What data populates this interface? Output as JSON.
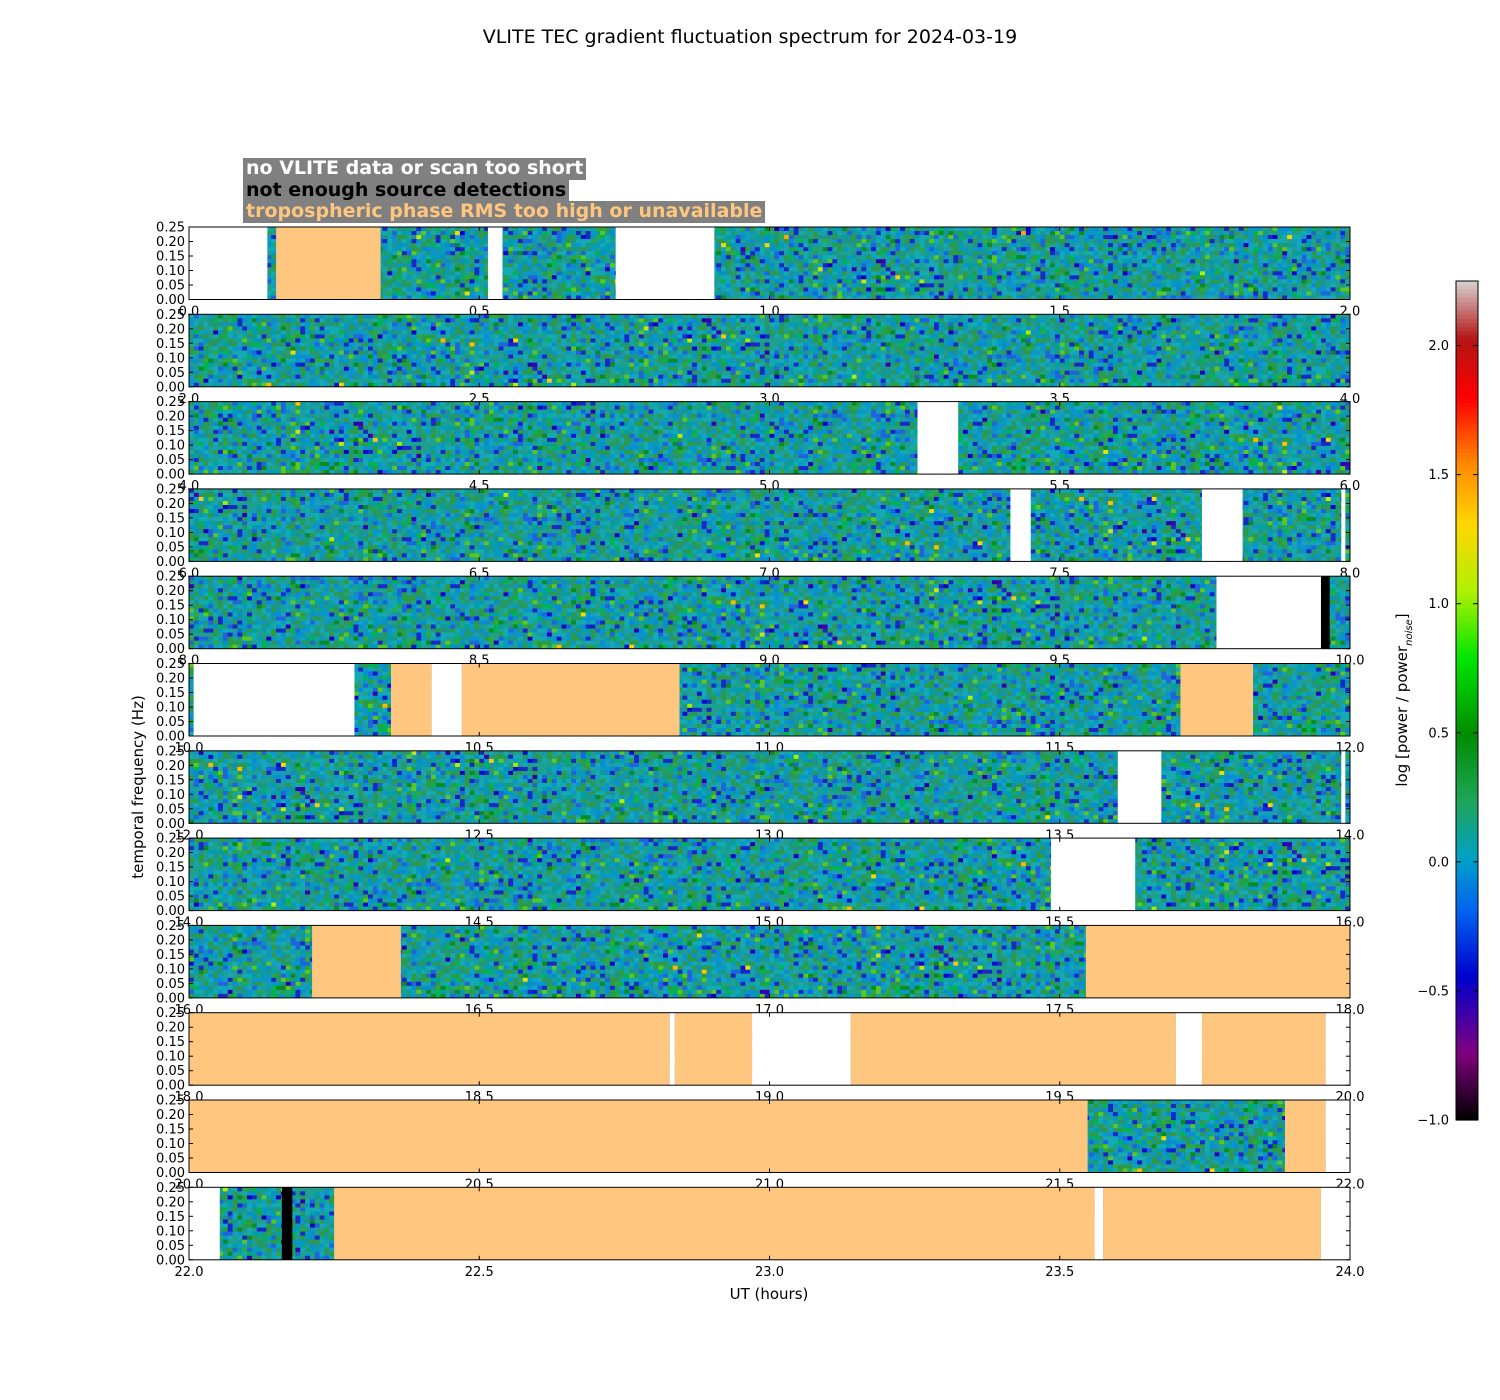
{
  "chart_data": {
    "type": "heatmap",
    "title": "VLITE TEC gradient fluctuation spectrum for 2024-03-19",
    "xlabel": "UT (hours)",
    "ylabel": "temporal frequency (Hz)",
    "ylim": [
      0.0,
      0.25
    ],
    "y_ticks": [
      "0.00",
      "0.05",
      "0.10",
      "0.15",
      "0.20",
      "0.25"
    ],
    "colorbar": {
      "label": "log [power / power",
      "label_sub": "noise",
      "label_end": "]",
      "vmin": -1.0,
      "vmax": 2.25,
      "ticks": [
        "−1.0",
        "−0.5",
        "0.0",
        "0.5",
        "1.0",
        "1.5",
        "2.0"
      ],
      "tick_values": [
        -1.0,
        -0.5,
        0.0,
        0.5,
        1.0,
        1.5,
        2.0
      ]
    },
    "legend": [
      {
        "label": "no VLITE data or scan too short",
        "color": "#ffffff"
      },
      {
        "label": "not enough source detections",
        "color": "#000000"
      },
      {
        "label": "tropospheric phase RMS too high or unavailable",
        "color": "#fec67e"
      }
    ],
    "status_colors": {
      "nodata": "#ffffff",
      "nodet": "#000000",
      "tropo": "#fec67e"
    },
    "panels": [
      {
        "xlim": [
          0.0,
          2.0
        ],
        "x_ticks": [
          "0.0",
          "0.5",
          "1.0",
          "1.5",
          "2.0"
        ],
        "segments": [
          {
            "start": 0.0,
            "end": 0.135,
            "status": "nodata"
          },
          {
            "start": 0.15,
            "end": 0.33,
            "status": "tropo"
          },
          {
            "start": 0.515,
            "end": 0.54,
            "status": "nodata"
          },
          {
            "start": 0.735,
            "end": 0.905,
            "status": "nodata"
          }
        ]
      },
      {
        "xlim": [
          2.0,
          4.0
        ],
        "x_ticks": [
          "2.0",
          "2.5",
          "3.0",
          "3.5",
          "4.0"
        ],
        "segments": []
      },
      {
        "xlim": [
          4.0,
          6.0
        ],
        "x_ticks": [
          "4.0",
          "4.5",
          "5.0",
          "5.5",
          "6.0"
        ],
        "segments": [
          {
            "start": 5.255,
            "end": 5.325,
            "status": "nodata"
          }
        ]
      },
      {
        "xlim": [
          6.0,
          8.0
        ],
        "x_ticks": [
          "6.0",
          "6.5",
          "7.0",
          "7.5",
          "8.0"
        ],
        "segments": [
          {
            "start": 7.415,
            "end": 7.45,
            "status": "nodata"
          },
          {
            "start": 7.745,
            "end": 7.815,
            "status": "nodata"
          },
          {
            "start": 7.985,
            "end": 7.992,
            "status": "nodata"
          }
        ]
      },
      {
        "xlim": [
          8.0,
          10.0
        ],
        "x_ticks": [
          "8.0",
          "8.5",
          "9.0",
          "9.5",
          "10.0"
        ],
        "segments": [
          {
            "start": 9.77,
            "end": 9.95,
            "status": "nodata"
          },
          {
            "start": 9.95,
            "end": 9.965,
            "status": "nodet"
          }
        ]
      },
      {
        "xlim": [
          10.0,
          12.0
        ],
        "x_ticks": [
          "10.0",
          "10.5",
          "11.0",
          "11.5",
          "12.0"
        ],
        "segments": [
          {
            "start": 10.008,
            "end": 10.285,
            "status": "nodata"
          },
          {
            "start": 10.348,
            "end": 10.418,
            "status": "tropo"
          },
          {
            "start": 10.418,
            "end": 10.47,
            "status": "nodata"
          },
          {
            "start": 10.47,
            "end": 10.845,
            "status": "tropo"
          },
          {
            "start": 11.708,
            "end": 11.833,
            "status": "tropo"
          }
        ]
      },
      {
        "xlim": [
          12.0,
          14.0
        ],
        "x_ticks": [
          "12.0",
          "12.5",
          "13.0",
          "13.5",
          "14.0"
        ],
        "segments": [
          {
            "start": 13.6,
            "end": 13.675,
            "status": "nodata"
          },
          {
            "start": 13.985,
            "end": 13.992,
            "status": "nodata"
          }
        ]
      },
      {
        "xlim": [
          14.0,
          16.0
        ],
        "x_ticks": [
          "14.0",
          "14.5",
          "15.0",
          "15.5",
          "16.0"
        ],
        "segments": [
          {
            "start": 15.485,
            "end": 15.63,
            "status": "nodata"
          }
        ]
      },
      {
        "xlim": [
          16.0,
          18.0
        ],
        "x_ticks": [
          "16.0",
          "16.5",
          "17.0",
          "17.5",
          "18.0"
        ],
        "segments": [
          {
            "start": 16.212,
            "end": 16.365,
            "status": "tropo"
          },
          {
            "start": 17.545,
            "end": 18.0,
            "status": "tropo"
          }
        ]
      },
      {
        "xlim": [
          18.0,
          20.0
        ],
        "x_ticks": [
          "18.0",
          "18.5",
          "19.0",
          "19.5",
          "20.0"
        ],
        "segments": [
          {
            "start": 18.0,
            "end": 18.828,
            "status": "tropo"
          },
          {
            "start": 18.828,
            "end": 18.837,
            "status": "nodata"
          },
          {
            "start": 18.837,
            "end": 18.97,
            "status": "tropo"
          },
          {
            "start": 18.97,
            "end": 19.14,
            "status": "nodata"
          },
          {
            "start": 19.14,
            "end": 19.7,
            "status": "tropo"
          },
          {
            "start": 19.7,
            "end": 19.745,
            "status": "nodata"
          },
          {
            "start": 19.745,
            "end": 19.958,
            "status": "tropo"
          },
          {
            "start": 19.958,
            "end": 20.0,
            "status": "nodata"
          }
        ]
      },
      {
        "xlim": [
          20.0,
          22.0
        ],
        "x_ticks": [
          "20.0",
          "20.5",
          "21.0",
          "21.5",
          "22.0"
        ],
        "segments": [
          {
            "start": 20.0,
            "end": 21.548,
            "status": "tropo"
          },
          {
            "start": 21.888,
            "end": 21.958,
            "status": "tropo"
          },
          {
            "start": 21.958,
            "end": 22.0,
            "status": "nodata"
          }
        ]
      },
      {
        "xlim": [
          22.0,
          24.0
        ],
        "x_ticks": [
          "22.0",
          "22.5",
          "23.0",
          "23.5",
          "24.0"
        ],
        "segments": [
          {
            "start": 22.0,
            "end": 22.053,
            "status": "nodata"
          },
          {
            "start": 22.16,
            "end": 22.178,
            "status": "nodet"
          },
          {
            "start": 22.25,
            "end": 23.56,
            "status": "tropo"
          },
          {
            "start": 23.56,
            "end": 23.575,
            "status": "nodata"
          },
          {
            "start": 23.575,
            "end": 23.95,
            "status": "tropo"
          },
          {
            "start": 23.95,
            "end": 24.0,
            "status": "nodata"
          }
        ]
      }
    ]
  }
}
